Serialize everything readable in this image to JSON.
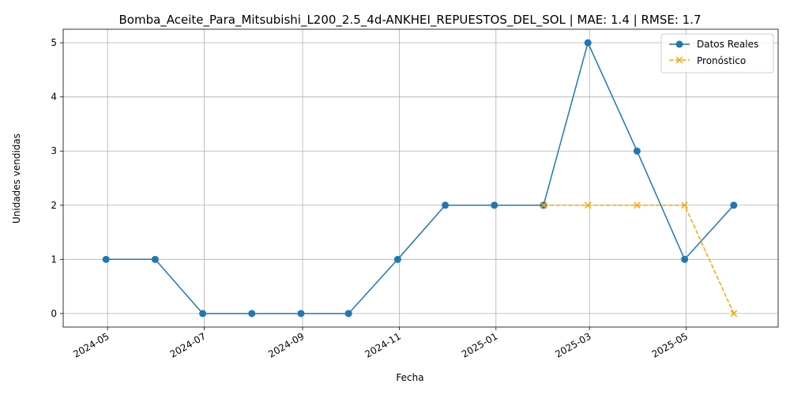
{
  "chart_data": {
    "type": "line",
    "title": "Bomba_Aceite_Para_Mitsubishi_L200_2.5_4d-ANKHEI_REPUESTOS_DEL_SOL | MAE: 1.4 | RMSE: 1.7",
    "xlabel": "Fecha",
    "ylabel": "Unidades vendidas",
    "x_type": "date",
    "xlim": [
      "2024-04-03",
      "2025-06-28"
    ],
    "ylim": [
      -0.25,
      5.25
    ],
    "x_ticks": [
      "2024-05",
      "2024-07",
      "2024-09",
      "2024-11",
      "2025-01",
      "2025-03",
      "2025-05"
    ],
    "y_ticks": [
      0,
      1,
      2,
      3,
      4,
      5
    ],
    "grid": true,
    "legend_position": "top-right",
    "series": [
      {
        "name": "Datos Reales",
        "color": "#1f77b4",
        "line_style": "solid",
        "marker": "circle",
        "x": [
          "2024-04-30",
          "2024-05-31",
          "2024-06-30",
          "2024-07-31",
          "2024-08-31",
          "2024-09-30",
          "2024-10-31",
          "2024-11-30",
          "2024-12-31",
          "2025-01-31",
          "2025-02-28",
          "2025-03-31",
          "2025-04-30",
          "2025-05-31"
        ],
        "values": [
          1,
          1,
          0,
          0,
          0,
          0,
          1,
          2,
          2,
          2,
          5,
          3,
          1,
          2
        ]
      },
      {
        "name": "Pronóstico",
        "color": "#ffa500",
        "line_style": "dashed",
        "marker": "x",
        "x": [
          "2025-01-31",
          "2025-02-28",
          "2025-03-31",
          "2025-04-30",
          "2025-05-31"
        ],
        "values": [
          2,
          2,
          2,
          2,
          0
        ]
      }
    ]
  }
}
